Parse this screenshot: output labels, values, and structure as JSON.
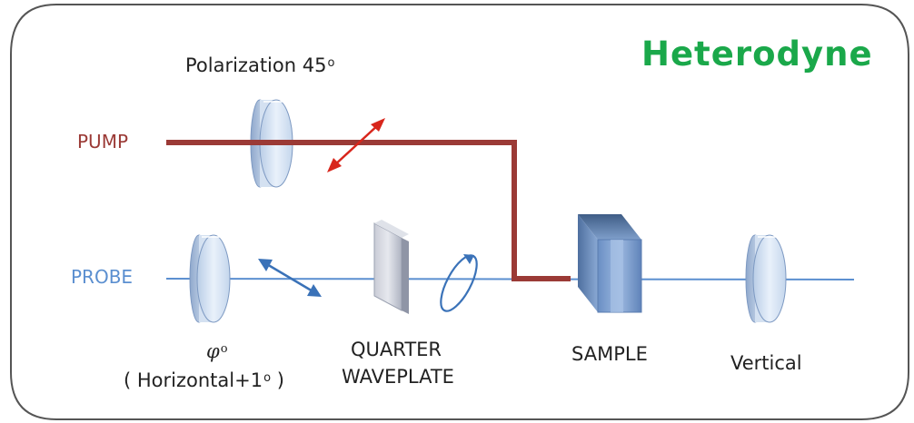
{
  "title": "Heterodyne",
  "colors": {
    "pump_beam": "#9b3a36",
    "probe_beam": "#5b8fd0",
    "title": "#1aa84a",
    "frame": "#555555",
    "arrow_red": "#d8261c",
    "arrow_blue": "#3a72b8"
  },
  "labels": {
    "pump": "PUMP",
    "probe": "PROBE",
    "pump_polarization": "Polarization 45",
    "pump_polarization_unit": "o",
    "probe_angle_symbol": "φ",
    "probe_angle_unit": "o",
    "probe_angle_note": "( Horizontal+1",
    "probe_angle_note_unit": "o",
    "probe_angle_note_close": " )",
    "quarter_waveplate": [
      "QUARTER",
      "WAVEPLATE"
    ],
    "sample": "SAMPLE",
    "analyzer": "Vertical"
  },
  "icons": [
    "polarizer-lens-icon",
    "waveplate-icon",
    "sample-block-icon",
    "linear-polarization-arrow-icon",
    "circular-polarization-icon"
  ]
}
